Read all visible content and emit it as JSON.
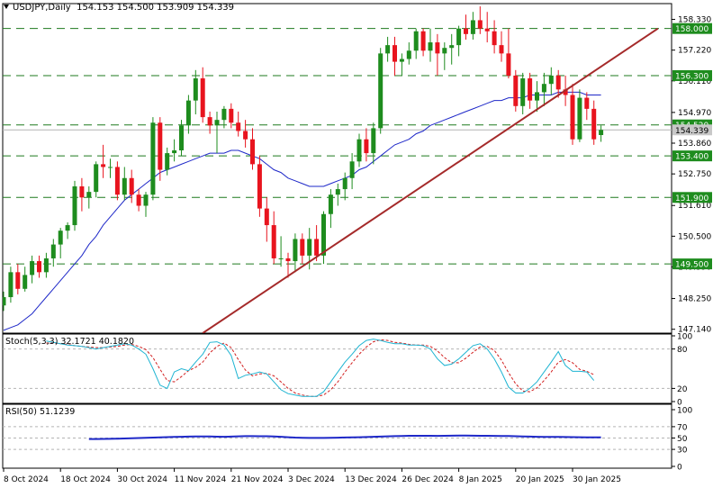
{
  "header": {
    "symbol": "USDJPY,Daily",
    "ohlc": "154.153 154.500 153.909 154.339"
  },
  "main_panel": {
    "price_ticks": [
      "158.330",
      "157.220",
      "156.110",
      "154.970",
      "153.860",
      "152.750",
      "151.610",
      "150.500",
      "149.390",
      "148.250",
      "147.140"
    ],
    "level_labels": [
      "158.000",
      "156.300",
      "154.520",
      "153.400",
      "151.900",
      "149.500"
    ],
    "current_price_label": "154.339"
  },
  "stoch_panel": {
    "label": "Stoch(5,3,3) 32.1721 40.1820",
    "ticks": [
      "100",
      "80",
      "20",
      "0"
    ]
  },
  "rsi_panel": {
    "label": "RSI(50) 51.1239",
    "ticks": [
      "100",
      "70",
      "50",
      "30",
      "0"
    ]
  },
  "x_axis": {
    "dates": [
      "8 Oct 2024",
      "18 Oct 2024",
      "30 Oct 2024",
      "11 Nov 2024",
      "21 Nov 2024",
      "3 Dec 2024",
      "13 Dec 2024",
      "26 Dec 2024",
      "8 Jan 2025",
      "20 Jan 2025",
      "30 Jan 2025"
    ]
  },
  "colors": {
    "bull": "#1e8c1e",
    "bear": "#e8141e",
    "ma": "#1e28c8",
    "trendline": "#a52a2a",
    "level_line": "#1e7a1e",
    "level_label_bg": "#1e8c1e",
    "current_label_bg": "#c8c8c8",
    "stoch_main": "#1eb4d2",
    "stoch_signal": "#d21e1e",
    "rsi": "#1e28c8"
  },
  "chart_data": {
    "type": "candlestick",
    "title": "USDJPY,Daily",
    "last_bar": {
      "open": 154.153,
      "high": 154.5,
      "low": 153.909,
      "close": 154.339
    },
    "ylim": [
      147.0,
      158.9
    ],
    "horizontal_levels": [
      158.0,
      156.3,
      154.52,
      153.4,
      151.9,
      149.5
    ],
    "current_price": 154.339,
    "x_tick_dates": [
      "8 Oct 2024",
      "18 Oct 2024",
      "30 Oct 2024",
      "11 Nov 2024",
      "21 Nov 2024",
      "3 Dec 2024",
      "13 Dec 2024",
      "26 Dec 2024",
      "8 Jan 2025",
      "20 Jan 2025",
      "30 Jan 2025"
    ],
    "x_tick_bar_index": [
      0,
      8,
      16,
      24,
      32,
      40,
      48,
      56,
      64,
      72,
      80
    ],
    "trendline": {
      "from": {
        "bar": 28,
        "price": 147.0
      },
      "to": {
        "bar": 92,
        "price": 158.0
      }
    },
    "candles": [
      [
        148.0,
        148.5,
        147.8,
        148.3
      ],
      [
        148.3,
        149.4,
        148.1,
        149.2
      ],
      [
        149.2,
        149.5,
        148.4,
        148.6
      ],
      [
        148.6,
        149.4,
        148.5,
        149.1
      ],
      [
        149.1,
        149.8,
        148.8,
        149.6
      ],
      [
        149.6,
        149.8,
        149.0,
        149.2
      ],
      [
        149.2,
        149.9,
        149.0,
        149.7
      ],
      [
        149.7,
        150.4,
        149.4,
        150.2
      ],
      [
        150.2,
        150.8,
        149.7,
        150.7
      ],
      [
        150.7,
        151.0,
        150.4,
        150.9
      ],
      [
        150.9,
        152.5,
        150.7,
        152.3
      ],
      [
        152.3,
        152.6,
        151.4,
        151.9
      ],
      [
        151.9,
        152.3,
        151.5,
        152.1
      ],
      [
        152.1,
        153.2,
        151.9,
        153.1
      ],
      [
        153.1,
        153.8,
        152.6,
        153.0
      ],
      [
        153.0,
        153.3,
        152.6,
        153.0
      ],
      [
        153.0,
        153.2,
        151.8,
        152.0
      ],
      [
        152.0,
        153.0,
        151.8,
        152.6
      ],
      [
        152.6,
        152.9,
        151.7,
        152.0
      ],
      [
        152.0,
        152.2,
        151.4,
        151.6
      ],
      [
        151.6,
        152.1,
        151.2,
        152.0
      ],
      [
        152.0,
        154.8,
        151.8,
        154.6
      ],
      [
        154.6,
        154.8,
        152.5,
        152.9
      ],
      [
        152.9,
        153.7,
        152.7,
        153.5
      ],
      [
        153.5,
        154.0,
        153.2,
        153.6
      ],
      [
        153.6,
        154.7,
        153.4,
        154.5
      ],
      [
        154.5,
        155.6,
        154.2,
        155.4
      ],
      [
        155.4,
        156.5,
        154.9,
        156.2
      ],
      [
        156.2,
        156.6,
        154.6,
        154.8
      ],
      [
        154.8,
        155.0,
        154.2,
        154.5
      ],
      [
        154.5,
        155.0,
        153.5,
        154.7
      ],
      [
        154.7,
        155.2,
        154.4,
        155.1
      ],
      [
        155.1,
        155.3,
        154.4,
        154.6
      ],
      [
        154.6,
        155.0,
        154.1,
        154.3
      ],
      [
        154.3,
        154.7,
        153.7,
        154.0
      ],
      [
        154.0,
        154.4,
        152.9,
        153.1
      ],
      [
        153.1,
        153.4,
        151.2,
        151.5
      ],
      [
        151.5,
        151.9,
        150.3,
        150.9
      ],
      [
        150.9,
        151.4,
        149.5,
        149.7
      ],
      [
        149.7,
        150.5,
        149.4,
        149.7
      ],
      [
        149.7,
        149.9,
        149.0,
        149.6
      ],
      [
        149.6,
        150.6,
        149.2,
        150.4
      ],
      [
        150.4,
        150.6,
        149.5,
        149.8
      ],
      [
        149.8,
        150.8,
        149.3,
        150.4
      ],
      [
        150.4,
        150.9,
        149.6,
        149.8
      ],
      [
        149.8,
        151.4,
        149.5,
        151.3
      ],
      [
        151.3,
        152.2,
        150.8,
        152.0
      ],
      [
        152.0,
        152.4,
        151.6,
        152.2
      ],
      [
        152.2,
        152.8,
        151.8,
        152.6
      ],
      [
        152.6,
        153.5,
        152.2,
        153.2
      ],
      [
        153.2,
        154.2,
        153.0,
        154.0
      ],
      [
        154.0,
        154.4,
        153.2,
        153.5
      ],
      [
        153.5,
        154.6,
        153.1,
        154.4
      ],
      [
        154.4,
        157.3,
        154.2,
        157.1
      ],
      [
        157.1,
        157.7,
        156.8,
        157.4
      ],
      [
        157.4,
        157.7,
        156.3,
        156.8
      ],
      [
        156.8,
        157.1,
        156.3,
        156.9
      ],
      [
        156.9,
        157.5,
        156.7,
        157.2
      ],
      [
        157.2,
        158.0,
        156.9,
        157.9
      ],
      [
        157.9,
        158.0,
        157.0,
        157.2
      ],
      [
        157.2,
        158.0,
        156.8,
        157.5
      ],
      [
        157.5,
        157.8,
        156.3,
        157.1
      ],
      [
        157.1,
        157.5,
        156.5,
        157.3
      ],
      [
        157.3,
        157.8,
        156.7,
        157.4
      ],
      [
        157.4,
        158.1,
        157.0,
        158.0
      ],
      [
        158.0,
        158.5,
        157.6,
        157.8
      ],
      [
        157.8,
        158.6,
        157.6,
        158.3
      ],
      [
        158.3,
        158.8,
        157.8,
        158.0
      ],
      [
        158.0,
        158.6,
        157.5,
        157.9
      ],
      [
        157.9,
        158.3,
        157.1,
        157.4
      ],
      [
        157.4,
        157.9,
        156.8,
        157.1
      ],
      [
        157.1,
        158.0,
        156.2,
        156.3
      ],
      [
        156.3,
        156.5,
        155.0,
        155.2
      ],
      [
        155.2,
        156.4,
        154.9,
        156.2
      ],
      [
        156.2,
        156.4,
        155.1,
        155.4
      ],
      [
        155.4,
        156.1,
        155.0,
        155.7
      ],
      [
        155.7,
        156.4,
        155.2,
        156.0
      ],
      [
        156.0,
        156.6,
        155.6,
        156.3
      ],
      [
        156.3,
        156.5,
        155.5,
        155.8
      ],
      [
        155.8,
        156.3,
        155.2,
        155.6
      ],
      [
        155.6,
        156.0,
        153.8,
        154.0
      ],
      [
        154.0,
        155.8,
        153.9,
        155.5
      ],
      [
        155.5,
        155.7,
        154.7,
        155.1
      ],
      [
        155.1,
        155.4,
        153.8,
        154.0
      ],
      [
        154.153,
        154.5,
        153.909,
        154.339
      ]
    ],
    "series": [
      {
        "values": [
          147.1,
          147.2,
          147.3,
          147.5,
          147.7,
          148.0,
          148.3,
          148.6,
          148.9,
          149.2,
          149.5,
          149.8,
          150.2,
          150.5,
          150.9,
          151.2,
          151.5,
          151.8,
          152.0,
          152.2,
          152.4,
          152.6,
          152.8,
          152.9,
          153.0,
          153.1,
          153.2,
          153.3,
          153.4,
          153.5,
          153.5,
          153.5,
          153.6,
          153.6,
          153.5,
          153.4,
          153.3,
          153.1,
          152.9,
          152.8,
          152.6,
          152.5,
          152.4,
          152.3,
          152.3,
          152.3,
          152.4,
          152.5,
          152.6,
          152.7,
          152.9,
          153.0,
          153.2,
          153.4,
          153.6,
          153.8,
          153.9,
          154.0,
          154.2,
          154.3,
          154.5,
          154.6,
          154.7,
          154.8,
          154.9,
          155.0,
          155.1,
          155.2,
          155.3,
          155.4,
          155.4,
          155.5,
          155.5,
          155.5,
          155.6,
          155.6,
          155.6,
          155.6,
          155.7,
          155.7,
          155.7,
          155.7,
          155.6,
          155.6,
          155.6
        ]
      }
    ],
    "stochastic": {
      "name": "Stoch(5,3,3)",
      "main_last": 32.1721,
      "signal_last": 40.182,
      "main": [
        92,
        90,
        88,
        86,
        85,
        84,
        82,
        80,
        82,
        84,
        86,
        88,
        86,
        80,
        72,
        50,
        25,
        20,
        45,
        50,
        47,
        60,
        72,
        90,
        91,
        86,
        70,
        35,
        40,
        42,
        45,
        42,
        30,
        18,
        12,
        10,
        8,
        8,
        8,
        15,
        30,
        45,
        60,
        72,
        85,
        93,
        95,
        93,
        90,
        88,
        88,
        86,
        86,
        85,
        80,
        65,
        55,
        57,
        65,
        75,
        85,
        88,
        80,
        65,
        45,
        22,
        13,
        13,
        20,
        30,
        45,
        60,
        76,
        55,
        46,
        46,
        45,
        32
      ],
      "signal": [
        89,
        89,
        88,
        87,
        85,
        84,
        83,
        82,
        82,
        83,
        84,
        86,
        87,
        84,
        79,
        67,
        49,
        32,
        30,
        38,
        47,
        52,
        60,
        74,
        84,
        89,
        82,
        64,
        48,
        39,
        42,
        43,
        39,
        30,
        20,
        13,
        10,
        8,
        8,
        10,
        18,
        30,
        45,
        59,
        72,
        83,
        91,
        94,
        93,
        90,
        89,
        87,
        86,
        86,
        84,
        77,
        67,
        59,
        59,
        66,
        75,
        83,
        84,
        78,
        63,
        44,
        27,
        16,
        15,
        21,
        32,
        45,
        60,
        64,
        59,
        49,
        46,
        41
      ]
    },
    "rsi": {
      "name": "RSI(50)",
      "last": 51.1239,
      "levels": [
        70,
        50,
        30
      ],
      "values": [
        48.2,
        48.3,
        48.4,
        48.6,
        48.9,
        49.2,
        49.6,
        50.0,
        50.4,
        50.8,
        51.2,
        51.6,
        52.0,
        52.3,
        52.6,
        52.8,
        52.9,
        52.7,
        52.4,
        52.3,
        52.6,
        53.0,
        53.3,
        53.4,
        53.2,
        53.1,
        52.9,
        52.2,
        51.4,
        50.8,
        50.4,
        50.2,
        50.1,
        50.2,
        50.4,
        50.6,
        50.9,
        51.2,
        51.5,
        51.8,
        52.2,
        52.6,
        53.0,
        53.4,
        53.7,
        53.9,
        54.0,
        53.9,
        53.9,
        53.8,
        53.9,
        54.1,
        54.3,
        54.4,
        54.2,
        54.0,
        53.9,
        53.8,
        53.7,
        53.5,
        53.2,
        52.9,
        52.6,
        52.3,
        52.1,
        52.0,
        51.9,
        51.8,
        51.6,
        51.4,
        51.3,
        51.2,
        51.1
      ]
    }
  }
}
